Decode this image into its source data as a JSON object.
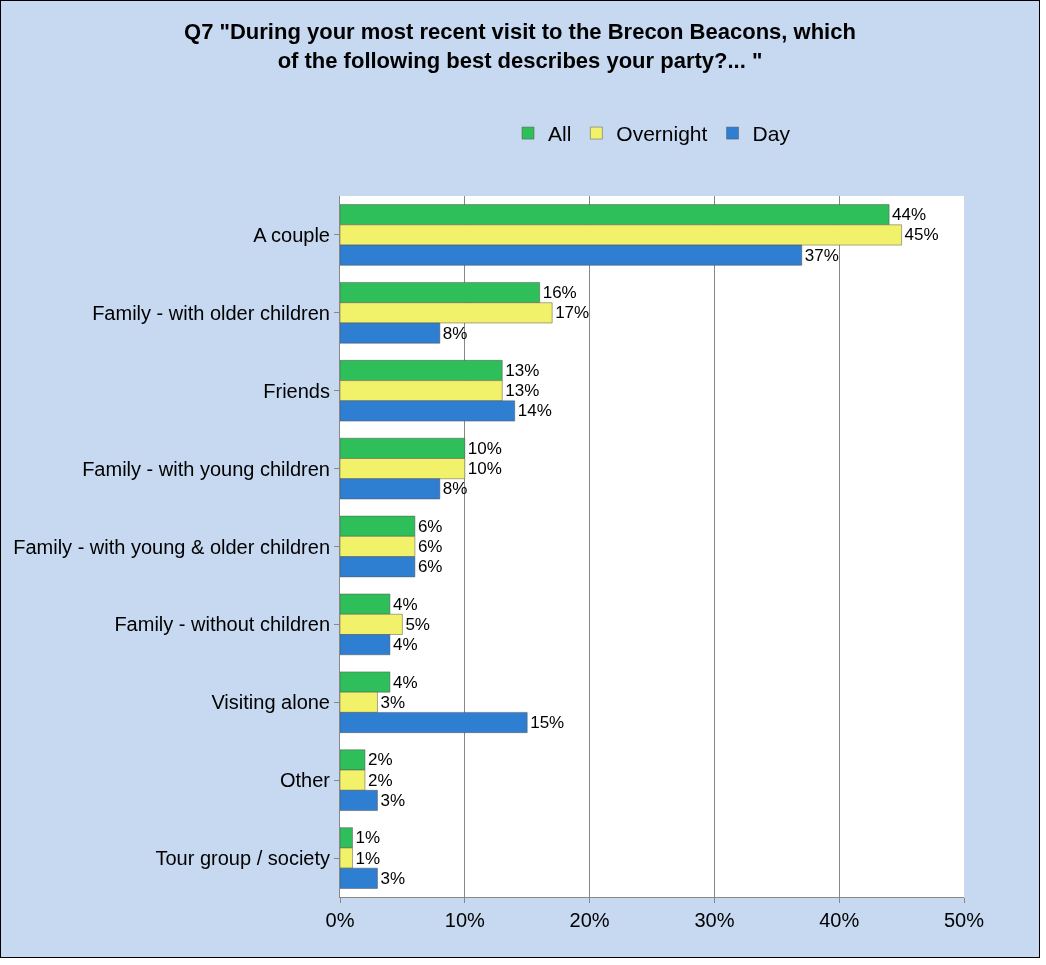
{
  "chart_data": {
    "type": "bar",
    "orientation": "horizontal",
    "title": "Q7 \"During your most recent visit to the Brecon Beacons, which of the following best describes your party?... \"",
    "categories": [
      "A couple",
      "Family - with older children",
      "Friends",
      "Family - with young children",
      "Family - with young & older children",
      "Family - without children",
      "Visiting alone",
      "Other",
      "Tour group / society"
    ],
    "series": [
      {
        "name": "All",
        "color": "#2fbf5a",
        "values": [
          44,
          16,
          13,
          10,
          6,
          4,
          4,
          2,
          1
        ],
        "value_labels": [
          "44%",
          "16%",
          "13%",
          "10%",
          "6%",
          "4%",
          "4%",
          "2%",
          "1%"
        ]
      },
      {
        "name": "Overnight",
        "color": "#f2f26a",
        "values": [
          45,
          17,
          13,
          10,
          6,
          5,
          3,
          2,
          1
        ],
        "value_labels": [
          "45%",
          "17%",
          "13%",
          "10%",
          "6%",
          "5%",
          "3%",
          "2%",
          "1%"
        ]
      },
      {
        "name": "Day",
        "color": "#2e7fd1",
        "values": [
          37,
          8,
          14,
          8,
          6,
          4,
          15,
          3,
          3
        ],
        "value_labels": [
          "37%",
          "8%",
          "14%",
          "8%",
          "6%",
          "4%",
          "15%",
          "3%",
          "3%"
        ]
      }
    ],
    "xlim": [
      0,
      50
    ],
    "xticks": [
      {
        "value": 0,
        "label": "0%"
      },
      {
        "value": 10,
        "label": "10%"
      },
      {
        "value": 20,
        "label": "20%"
      },
      {
        "value": 30,
        "label": "30%"
      },
      {
        "value": 40,
        "label": "40%"
      },
      {
        "value": 50,
        "label": "50%"
      }
    ],
    "grid": "x",
    "legend": "top"
  }
}
